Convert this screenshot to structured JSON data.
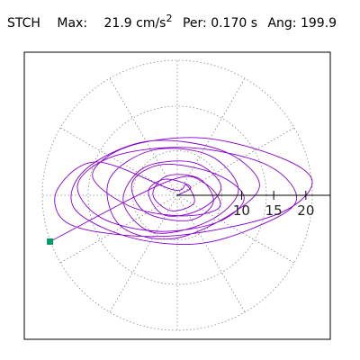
{
  "header": {
    "station": "STCH",
    "max_label": "Max:",
    "max_value": "21.9",
    "max_unit": "cm/s",
    "max_unit_exp": "2",
    "per_label": "Per:",
    "per_value": "0.170 s",
    "ang_label": "Ang:",
    "ang_value": "199.9"
  },
  "chart_data": {
    "type": "scatter",
    "title": "",
    "xlabel": "",
    "ylabel": "",
    "rlim": [
      0,
      20
    ],
    "radial_ticks": [
      10,
      15,
      20
    ],
    "angular_divisions": 12,
    "grid": true,
    "trace_color": "#8800cc",
    "marker_color": "#009966",
    "end_point": {
      "x": -19.8,
      "y": -7.2
    },
    "trace": [
      [
        0,
        0
      ],
      [
        2.1,
        1.3
      ],
      [
        -1.8,
        2.5
      ],
      [
        -4.5,
        0.6
      ],
      [
        -2.0,
        -3.1
      ],
      [
        3.6,
        -2.2
      ],
      [
        6.8,
        1.4
      ],
      [
        2.5,
        5.1
      ],
      [
        -5.2,
        4.3
      ],
      [
        -8.4,
        -1.0
      ],
      [
        -3.7,
        -5.8
      ],
      [
        4.9,
        -4.0
      ],
      [
        9.5,
        0.8
      ],
      [
        5.0,
        6.2
      ],
      [
        -3.9,
        7.0
      ],
      [
        -10.6,
        2.4
      ],
      [
        -9.0,
        -4.6
      ],
      [
        -1.2,
        -6.8
      ],
      [
        7.4,
        -3.5
      ],
      [
        12.8,
        1.6
      ],
      [
        7.1,
        6.9
      ],
      [
        -4.6,
        8.4
      ],
      [
        -14.3,
        4.0
      ],
      [
        -16.1,
        -1.9
      ],
      [
        -8.2,
        -6.3
      ],
      [
        2.4,
        -7.6
      ],
      [
        11.6,
        -5.2
      ],
      [
        18.5,
        -0.9
      ],
      [
        14.2,
        4.6
      ],
      [
        2.0,
        7.4
      ],
      [
        -9.8,
        6.1
      ],
      [
        -15.5,
        1.7
      ],
      [
        -12.0,
        -3.4
      ],
      [
        -3.1,
        -5.6
      ],
      [
        6.2,
        -4.2
      ],
      [
        10.4,
        -0.4
      ],
      [
        6.0,
        3.3
      ],
      [
        -2.2,
        4.8
      ],
      [
        -7.0,
        2.0
      ],
      [
        -5.0,
        -2.6
      ],
      [
        1.8,
        -3.9
      ],
      [
        5.6,
        -1.1
      ],
      [
        3.4,
        2.6
      ],
      [
        -1.6,
        3.0
      ],
      [
        -3.8,
        0.1
      ],
      [
        -1.0,
        -2.4
      ],
      [
        2.6,
        -1.2
      ],
      [
        1.4,
        1.6
      ],
      [
        -0.8,
        0.9
      ],
      [
        -12.5,
        5.2
      ],
      [
        -18.6,
        1.0
      ],
      [
        -17.8,
        -3.8
      ],
      [
        -11.0,
        -5.9
      ],
      [
        0.5,
        -6.2
      ],
      [
        15.4,
        -3.0
      ],
      [
        21.0,
        1.9
      ],
      [
        16.2,
        5.8
      ],
      [
        4.1,
        8.9
      ],
      [
        -7.6,
        7.6
      ],
      [
        -13.2,
        3.1
      ],
      [
        -7.4,
        -1.7
      ],
      [
        0.9,
        -3.2
      ],
      [
        6.6,
        -1.8
      ],
      [
        4.2,
        1.9
      ],
      [
        -1.4,
        2.2
      ],
      [
        -19.8,
        -7.2
      ]
    ]
  }
}
